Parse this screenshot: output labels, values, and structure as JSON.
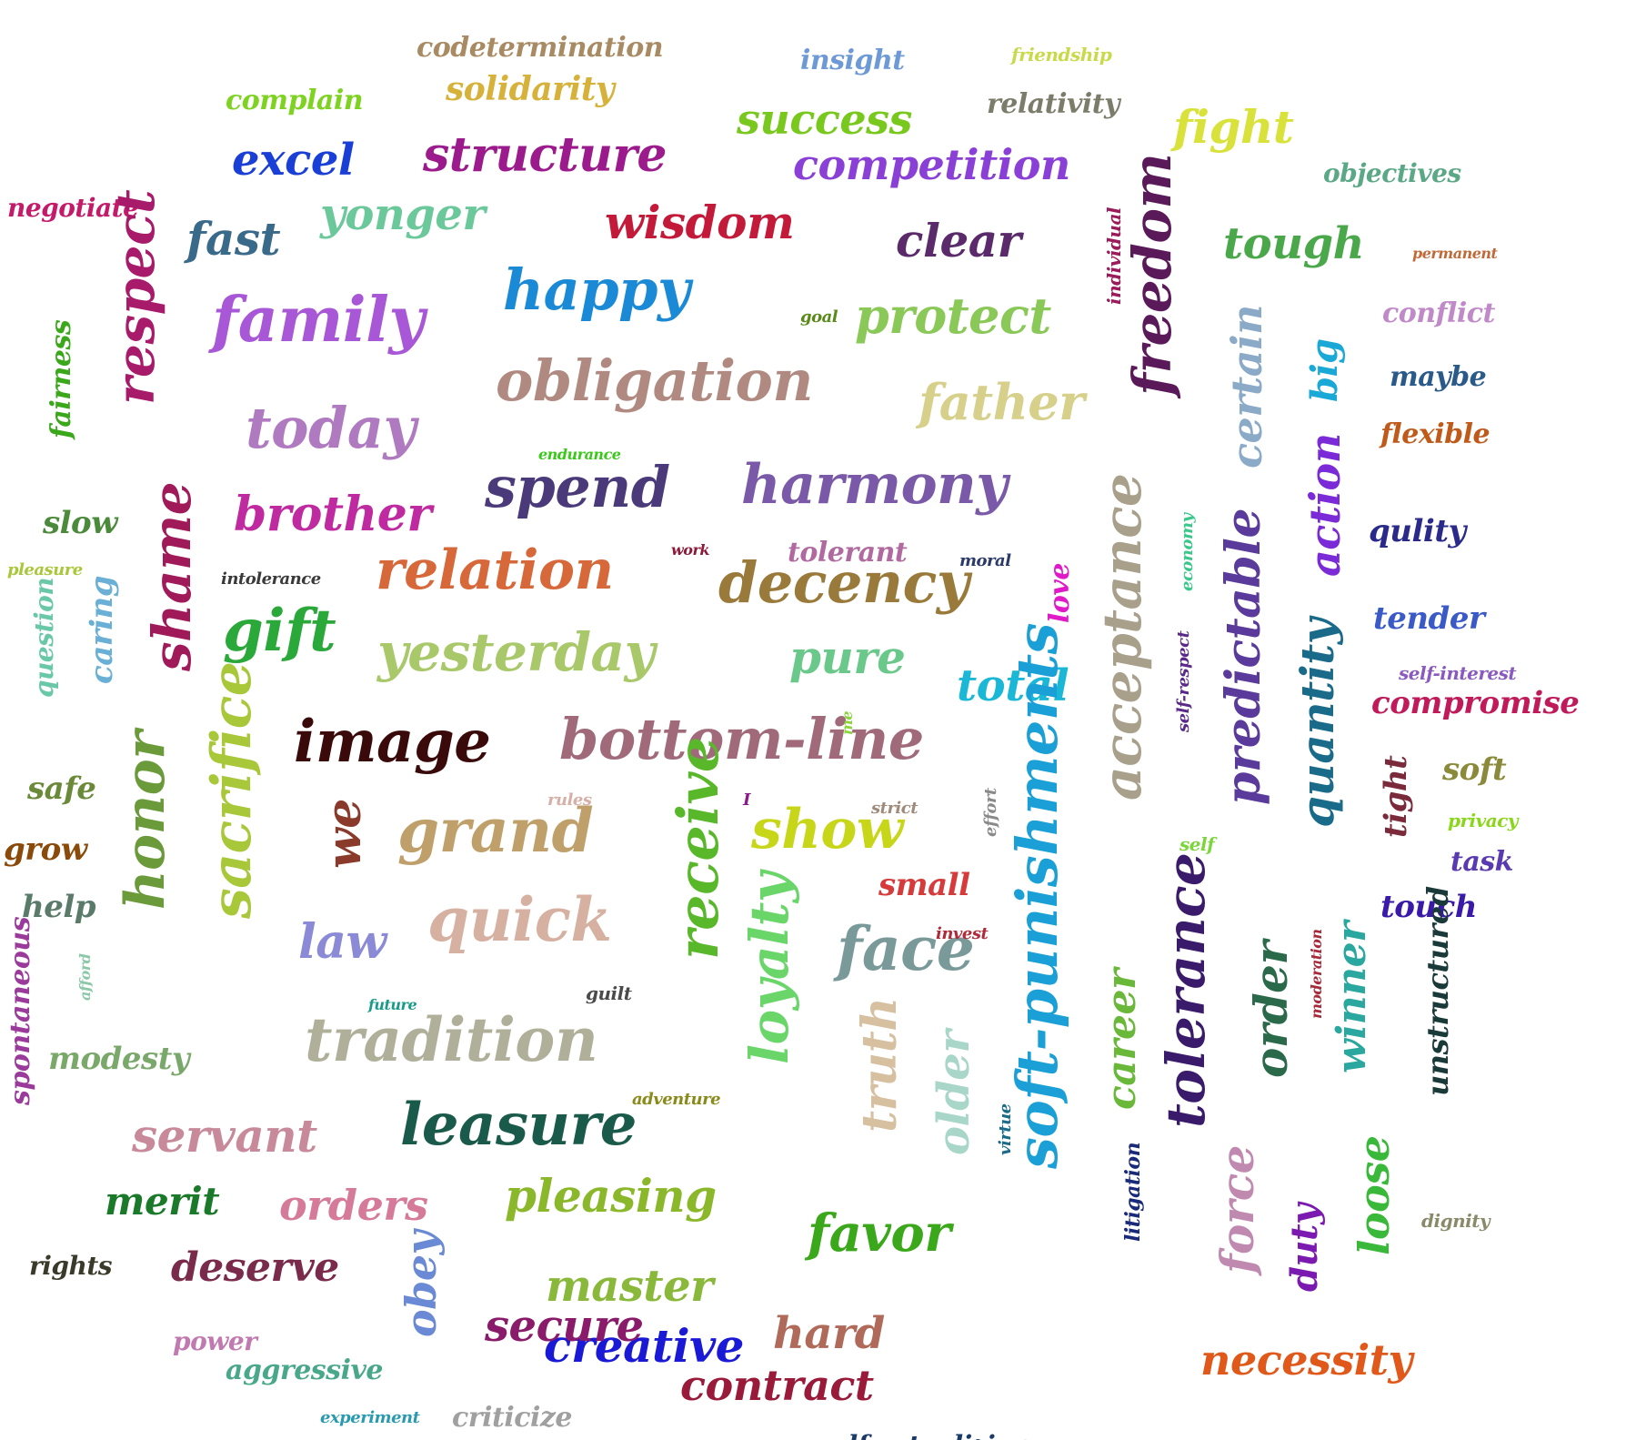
{
  "words": [
    {
      "text": "codetermination",
      "color": "#a88a63",
      "orientation": "horizontal"
    },
    {
      "text": "insight",
      "color": "#6d9ad6",
      "orientation": "horizontal"
    },
    {
      "text": "friendship",
      "color": "#c8d94a",
      "orientation": "horizontal"
    },
    {
      "text": "complain",
      "color": "#7ed321",
      "orientation": "horizontal"
    },
    {
      "text": "solidarity",
      "color": "#d6b23a",
      "orientation": "horizontal"
    },
    {
      "text": "success",
      "color": "#78c81e",
      "orientation": "horizontal"
    },
    {
      "text": "relativity",
      "color": "#7c7c6a",
      "orientation": "horizontal"
    },
    {
      "text": "fight",
      "color": "#d8e23a",
      "orientation": "horizontal"
    },
    {
      "text": "excel",
      "color": "#1a3fd6",
      "orientation": "horizontal"
    },
    {
      "text": "structure",
      "color": "#9b1a8c",
      "orientation": "horizontal"
    },
    {
      "text": "competition",
      "color": "#8a3fd6",
      "orientation": "horizontal"
    },
    {
      "text": "objectives",
      "color": "#5aa886",
      "orientation": "horizontal"
    },
    {
      "text": "negotiate",
      "color": "#c41a6a",
      "orientation": "horizontal"
    },
    {
      "text": "yonger",
      "color": "#6ac89a",
      "orientation": "horizontal"
    },
    {
      "text": "fast",
      "color": "#3a6a8a",
      "orientation": "horizontal"
    },
    {
      "text": "wisdom",
      "color": "#c41a3a",
      "orientation": "horizontal"
    },
    {
      "text": "clear",
      "color": "#5a2a6a",
      "orientation": "horizontal"
    },
    {
      "text": "individual",
      "color": "#9a1a5a",
      "orientation": "vertical"
    },
    {
      "text": "freedom",
      "color": "#5a1a5a",
      "orientation": "vertical"
    },
    {
      "text": "tough",
      "color": "#4aa84a",
      "orientation": "horizontal"
    },
    {
      "text": "permanent",
      "color": "#c06a3a",
      "orientation": "horizontal"
    },
    {
      "text": "respect",
      "color": "#a81a6a",
      "orientation": "vertical"
    },
    {
      "text": "family",
      "color": "#a858d6",
      "orientation": "horizontal"
    },
    {
      "text": "happy",
      "color": "#1a8ad6",
      "orientation": "horizontal"
    },
    {
      "text": "goal",
      "color": "#5a8a1a",
      "orientation": "horizontal"
    },
    {
      "text": "protect",
      "color": "#8ac858",
      "orientation": "horizontal"
    },
    {
      "text": "conflict",
      "color": "#c08ac8",
      "orientation": "horizontal"
    },
    {
      "text": "fairness",
      "color": "#3aa81a",
      "orientation": "vertical"
    },
    {
      "text": "certain",
      "color": "#8aaac8",
      "orientation": "vertical"
    },
    {
      "text": "big",
      "color": "#1aa8d6",
      "orientation": "vertical"
    },
    {
      "text": "maybe",
      "color": "#2a5a8a",
      "orientation": "horizontal"
    },
    {
      "text": "obligation",
      "color": "#b08a80",
      "orientation": "horizontal"
    },
    {
      "text": "father",
      "color": "#d6d08a",
      "orientation": "horizontal"
    },
    {
      "text": "today",
      "color": "#b07ac0",
      "orientation": "horizontal"
    },
    {
      "text": "flexible",
      "color": "#c05a1a",
      "orientation": "horizontal"
    },
    {
      "text": "endurance",
      "color": "#3ac81a",
      "orientation": "horizontal"
    },
    {
      "text": "spend",
      "color": "#4a3a7a",
      "orientation": "horizontal"
    },
    {
      "text": "harmony",
      "color": "#7a5aa8",
      "orientation": "horizontal"
    },
    {
      "text": "action",
      "color": "#7a2ad6",
      "orientation": "vertical"
    },
    {
      "text": "slow",
      "color": "#4a8a3a",
      "orientation": "horizontal"
    },
    {
      "text": "brother",
      "color": "#c02aa0",
      "orientation": "horizontal"
    },
    {
      "text": "shame",
      "color": "#a01a5a",
      "orientation": "vertical"
    },
    {
      "text": "qulity",
      "color": "#2a2a8a",
      "orientation": "horizontal"
    },
    {
      "text": "work",
      "color": "#8a1a3a",
      "orientation": "horizontal"
    },
    {
      "text": "tolerant",
      "color": "#b06aa0",
      "orientation": "horizontal"
    },
    {
      "text": "moral",
      "color": "#2a3a6a",
      "orientation": "horizontal"
    },
    {
      "text": "economy",
      "color": "#3ac88a",
      "orientation": "vertical"
    },
    {
      "text": "pleasure",
      "color": "#a8c83a",
      "orientation": "horizontal"
    },
    {
      "text": "intolerance",
      "color": "#3a3a3a",
      "orientation": "horizontal"
    },
    {
      "text": "relation",
      "color": "#d6683a",
      "orientation": "horizontal"
    },
    {
      "text": "decency",
      "color": "#9a7a3a",
      "orientation": "horizontal"
    },
    {
      "text": "love",
      "color": "#e01ac8",
      "orientation": "vertical"
    },
    {
      "text": "acceptance",
      "color": "#a8a08a",
      "orientation": "vertical"
    },
    {
      "text": "predictable",
      "color": "#5a3a9a",
      "orientation": "vertical"
    },
    {
      "text": "tender",
      "color": "#3a5ac8",
      "orientation": "horizontal"
    },
    {
      "text": "question",
      "color": "#6ac8a8",
      "orientation": "vertical"
    },
    {
      "text": "caring",
      "color": "#6ab0d6",
      "orientation": "vertical"
    },
    {
      "text": "gift",
      "color": "#2aa83a",
      "orientation": "horizontal"
    },
    {
      "text": "yesterday",
      "color": "#a8c86a",
      "orientation": "horizontal"
    },
    {
      "text": "pure",
      "color": "#6ac88a",
      "orientation": "horizontal"
    },
    {
      "text": "total",
      "color": "#1ab8d6",
      "orientation": "horizontal"
    },
    {
      "text": "self-respect",
      "color": "#5a2a8a",
      "orientation": "vertical"
    },
    {
      "text": "self-interest",
      "color": "#8a5ac0",
      "orientation": "horizontal"
    },
    {
      "text": "quantity",
      "color": "#1a6a8a",
      "orientation": "vertical"
    },
    {
      "text": "compromise",
      "color": "#c01a5a",
      "orientation": "horizontal"
    },
    {
      "text": "image",
      "color": "#3a0a0a",
      "orientation": "horizontal"
    },
    {
      "text": "bottom-line",
      "color": "#a06a7a",
      "orientation": "horizontal"
    },
    {
      "text": "me",
      "color": "#8ad63a",
      "orientation": "vertical"
    },
    {
      "text": "safe",
      "color": "#6a8a3a",
      "orientation": "horizontal"
    },
    {
      "text": "sacrifice",
      "color": "#a8c83a",
      "orientation": "vertical"
    },
    {
      "text": "soft",
      "color": "#8a8a3a",
      "orientation": "horizontal"
    },
    {
      "text": "honor",
      "color": "#6a9a3a",
      "orientation": "vertical"
    },
    {
      "text": "rules",
      "color": "#d6b0a8",
      "orientation": "horizontal"
    },
    {
      "text": "I",
      "color": "#8a1a8a",
      "orientation": "horizontal"
    },
    {
      "text": "strict",
      "color": "#a08a7a",
      "orientation": "horizontal"
    },
    {
      "text": "tight",
      "color": "#7a2a3a",
      "orientation": "vertical"
    },
    {
      "text": "privacy",
      "color": "#8ad61a",
      "orientation": "horizontal"
    },
    {
      "text": "grow",
      "color": "#8a4a0a",
      "orientation": "horizontal"
    },
    {
      "text": "we",
      "color": "#8a3a2a",
      "orientation": "vertical"
    },
    {
      "text": "grand",
      "color": "#c0a06a",
      "orientation": "horizontal"
    },
    {
      "text": "receive",
      "color": "#58b82a",
      "orientation": "vertical"
    },
    {
      "text": "show",
      "color": "#c8d61a",
      "orientation": "horizontal"
    },
    {
      "text": "effort",
      "color": "#8a8a8a",
      "orientation": "vertical"
    },
    {
      "text": "self",
      "color": "#7ad63a",
      "orientation": "horizontal"
    },
    {
      "text": "task",
      "color": "#5a3ab0",
      "orientation": "horizontal"
    },
    {
      "text": "help",
      "color": "#5a7a6a",
      "orientation": "horizontal"
    },
    {
      "text": "small",
      "color": "#d63a3a",
      "orientation": "horizontal"
    },
    {
      "text": "soft-punishments",
      "color": "#1aa0d6",
      "orientation": "vertical"
    },
    {
      "text": "touch",
      "color": "#3a1aa8",
      "orientation": "horizontal"
    },
    {
      "text": "quick",
      "color": "#d6b0a0",
      "orientation": "horizontal"
    },
    {
      "text": "law",
      "color": "#8a8ad6",
      "orientation": "horizontal"
    },
    {
      "text": "loyalty",
      "color": "#6ad66a",
      "orientation": "vertical"
    },
    {
      "text": "face",
      "color": "#7a9a9a",
      "orientation": "horizontal"
    },
    {
      "text": "invest",
      "color": "#b02a3a",
      "orientation": "horizontal"
    },
    {
      "text": "tolerance",
      "color": "#3a1a6a",
      "orientation": "vertical"
    },
    {
      "text": "moderation",
      "color": "#a82a3a",
      "orientation": "vertical"
    },
    {
      "text": "spontaneous",
      "color": "#9a3a9a",
      "orientation": "vertical"
    },
    {
      "text": "afford",
      "color": "#8ac8a8",
      "orientation": "vertical"
    },
    {
      "text": "guilt",
      "color": "#4a4a4a",
      "orientation": "horizontal"
    },
    {
      "text": "winner",
      "color": "#2aa8a0",
      "orientation": "vertical"
    },
    {
      "text": "order",
      "color": "#2a6a4a",
      "orientation": "vertical"
    },
    {
      "text": "unstructured",
      "color": "#1a3a3a",
      "orientation": "vertical"
    },
    {
      "text": "future",
      "color": "#1a9a8a",
      "orientation": "horizontal"
    },
    {
      "text": "tradition",
      "color": "#b0b09a",
      "orientation": "horizontal"
    },
    {
      "text": "career",
      "color": "#6ab83a",
      "orientation": "vertical"
    },
    {
      "text": "modesty",
      "color": "#7aa86a",
      "orientation": "horizontal"
    },
    {
      "text": "truth",
      "color": "#d6c0a0",
      "orientation": "vertical"
    },
    {
      "text": "older",
      "color": "#a8d6c8",
      "orientation": "vertical"
    },
    {
      "text": "adventure",
      "color": "#8a8a1a",
      "orientation": "horizontal"
    },
    {
      "text": "servant",
      "color": "#c88a9a",
      "orientation": "horizontal"
    },
    {
      "text": "leasure",
      "color": "#1a5a4a",
      "orientation": "horizontal"
    },
    {
      "text": "virtue",
      "color": "#1a6a8a",
      "orientation": "vertical"
    },
    {
      "text": "merit",
      "color": "#1a7a2a",
      "orientation": "horizontal"
    },
    {
      "text": "orders",
      "color": "#d67a9a",
      "orientation": "horizontal"
    },
    {
      "text": "pleasing",
      "color": "#8ab82a",
      "orientation": "horizontal"
    },
    {
      "text": "favor",
      "color": "#3aa81a",
      "orientation": "horizontal"
    },
    {
      "text": "litigation",
      "color": "#1a2a7a",
      "orientation": "vertical"
    },
    {
      "text": "force",
      "color": "#c08ab0",
      "orientation": "vertical"
    },
    {
      "text": "duty",
      "color": "#7a1ab0",
      "orientation": "vertical"
    },
    {
      "text": "loose",
      "color": "#3ab83a",
      "orientation": "vertical"
    },
    {
      "text": "dignity",
      "color": "#8a8a6a",
      "orientation": "horizontal"
    },
    {
      "text": "rights",
      "color": "#3a3a2a",
      "orientation": "horizontal"
    },
    {
      "text": "deserve",
      "color": "#7a2a4a",
      "orientation": "horizontal"
    },
    {
      "text": "obey",
      "color": "#6a8ad6",
      "orientation": "vertical"
    },
    {
      "text": "master",
      "color": "#8ab83a",
      "orientation": "horizontal"
    },
    {
      "text": "creative",
      "color": "#1a1ad6",
      "orientation": "horizontal"
    },
    {
      "text": "power",
      "color": "#c07ab0",
      "orientation": "horizontal"
    },
    {
      "text": "secure",
      "color": "#8a1a6a",
      "orientation": "horizontal"
    },
    {
      "text": "hard",
      "color": "#b06a5a",
      "orientation": "horizontal"
    },
    {
      "text": "necessity",
      "color": "#e0581a",
      "orientation": "horizontal"
    },
    {
      "text": "aggressive",
      "color": "#4aa88a",
      "orientation": "horizontal"
    },
    {
      "text": "contract",
      "color": "#9a1a3a",
      "orientation": "horizontal"
    },
    {
      "text": "experiment",
      "color": "#2a9ab0",
      "orientation": "horizontal"
    },
    {
      "text": "criticize",
      "color": "#a0a0a0",
      "orientation": "horizontal"
    },
    {
      "text": "self-actualizing",
      "color": "#1a3a6a",
      "orientation": "horizontal"
    }
  ]
}
